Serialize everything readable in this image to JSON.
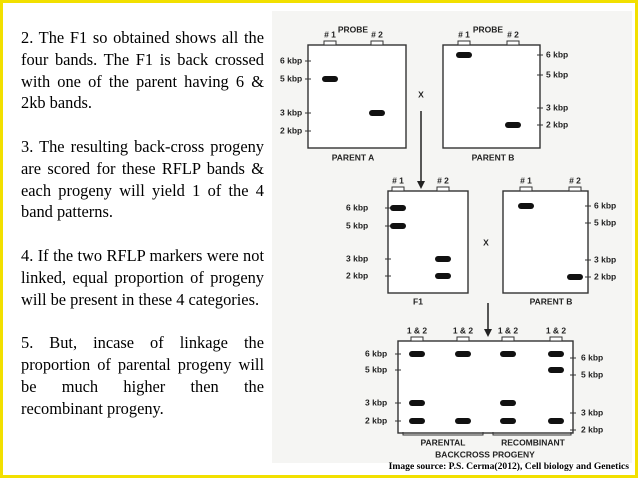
{
  "paragraphs": [
    "2. The F1 so obtained shows all the four bands. The F1 is back crossed with one of the parent having 6 & 2kb bands.",
    "3. The resulting back-cross progeny are scored for these RFLP bands & each progeny will yield 1 of the 4 band patterns.",
    "4. If the two RFLP markers were not linked, equal proportion of progeny will be present in these 4 categories.",
    "5. But, incase of linkage the proportion of parental progeny will be much higher then the recombinant progeny."
  ],
  "diagram": {
    "panels": [
      {
        "probe": "PROBE",
        "label": "PARENT A",
        "lanes": [
          "# 1",
          "# 2"
        ],
        "sizes": [
          "6 kbp",
          "5 kbp",
          "3 kbp",
          "2 kbp"
        ]
      },
      {
        "probe": "PROBE",
        "label": "PARENT B",
        "lanes": [
          "# 1",
          "# 2"
        ],
        "sizes": [
          "6 kbp",
          "5 kbp",
          "3 kbp",
          "2 kbp"
        ]
      },
      {
        "label": "F1",
        "lanes": [
          "# 1",
          "# 2"
        ],
        "sizes": [
          "6 kbp",
          "5 kbp",
          "3 kbp",
          "2 kbp"
        ]
      },
      {
        "label": "PARENT B",
        "lanes": [
          "# 1",
          "# 2"
        ],
        "sizes": [
          "6 kbp",
          "5 kbp",
          "3 kbp",
          "2 kbp"
        ]
      },
      {
        "label": "BACKCROSS PROGENY",
        "lanes": [
          "1 & 2",
          "1 & 2",
          "1 & 2",
          "1 & 2"
        ],
        "sizes": [
          "6 kbp",
          "5 kbp",
          "3 kbp",
          "2 kbp"
        ],
        "sizes_right": [
          "6 kbp",
          "5 kbp",
          "3 kbp",
          "2 kbp"
        ],
        "groups": [
          "PARENTAL",
          "RECOMBINANT"
        ]
      }
    ],
    "cross_marks": [
      "X",
      "X"
    ]
  },
  "source": "Image source: P.S. Cerma(2012), Cell biology and Genetics"
}
